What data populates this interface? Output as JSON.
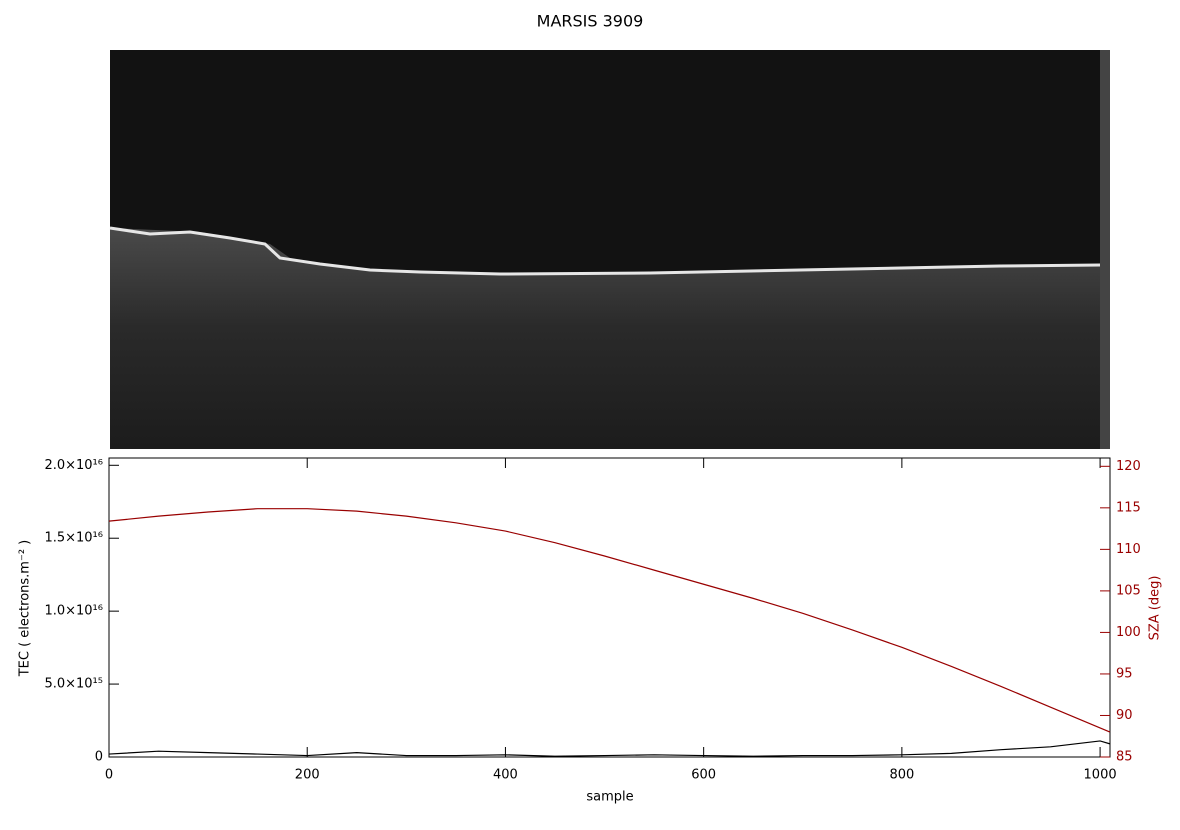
{
  "chart_data": {
    "type": "line",
    "title": "MARSIS 3909",
    "x_label": "sample",
    "y_label": "TEC ( electrons.m⁻² )",
    "y2_label": "SZA (deg)",
    "x": [
      0,
      50,
      100,
      150,
      200,
      250,
      300,
      350,
      400,
      450,
      500,
      550,
      600,
      650,
      700,
      750,
      800,
      850,
      900,
      950,
      1000,
      1010
    ],
    "series": [
      {
        "name": "TEC",
        "color": "#000000",
        "values": [
          200000000000000.0,
          400000000000000.0,
          300000000000000.0,
          200000000000000.0,
          100000000000000.0,
          300000000000000.0,
          100000000000000.0,
          100000000000000.0,
          150000000000000.0,
          50000000000000.0,
          100000000000000.0,
          150000000000000.0,
          100000000000000.0,
          50000000000000.0,
          100000000000000.0,
          100000000000000.0,
          150000000000000.0,
          250000000000000.0,
          500000000000000.0,
          700000000000000.0,
          1100000000000000.0,
          900000000000000.0
        ]
      },
      {
        "name": "SZA",
        "color": "#990000",
        "axis": "y2",
        "values": [
          113.4,
          114.0,
          114.5,
          114.9,
          114.9,
          114.6,
          114.0,
          113.2,
          112.2,
          110.8,
          109.2,
          107.5,
          105.8,
          104.1,
          102.3,
          100.3,
          98.2,
          95.9,
          93.5,
          91.0,
          88.5,
          88.0
        ]
      }
    ],
    "xlim": [
      0,
      1010
    ],
    "xticks": [
      0,
      200,
      400,
      600,
      800,
      1000
    ],
    "ylim": [
      0,
      2.05e+16
    ],
    "yticks": [
      0,
      {
        "value": 5000000000000000.0,
        "label": "5.0×10¹⁵"
      },
      {
        "value": 1e+16,
        "label": "1.0×10¹⁶"
      },
      {
        "value": 1.5e+16,
        "label": "1.5×10¹⁶"
      },
      {
        "value": 2e+16,
        "label": "2.0×10¹⁶"
      }
    ],
    "y2lim": [
      85,
      121
    ],
    "y2ticks": [
      85,
      90,
      95,
      100,
      105,
      110,
      115,
      120
    ]
  }
}
